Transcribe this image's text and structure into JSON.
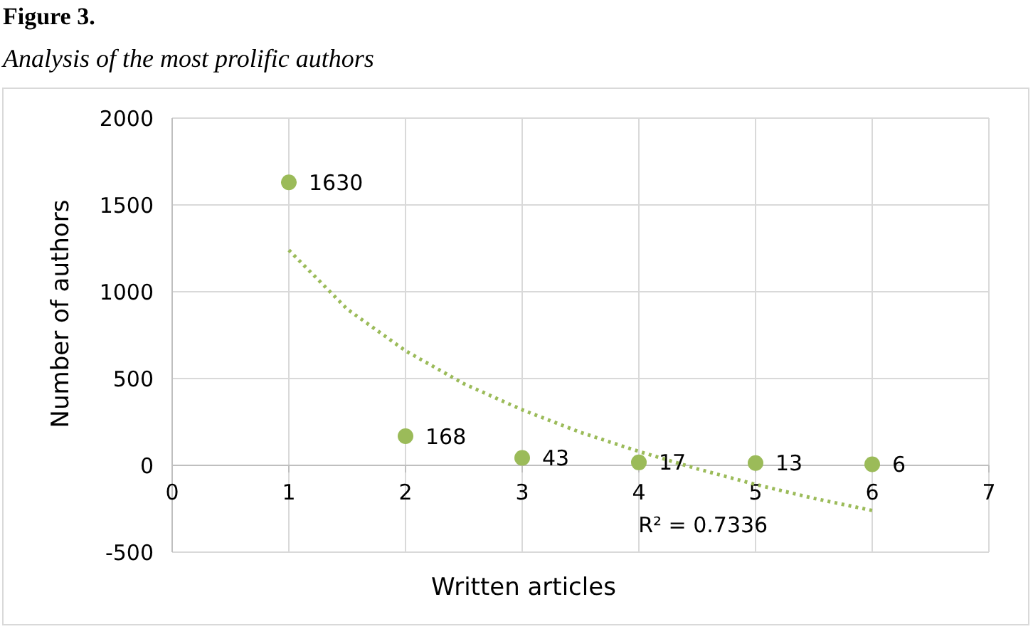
{
  "chart_data": {
    "type": "scatter",
    "title": "Figure 3.",
    "subtitle": "Analysis of the most prolific authors",
    "xlabel": "Written articles",
    "ylabel": "Number of authors",
    "xlim": [
      0,
      7
    ],
    "xticks": [
      0,
      1,
      2,
      3,
      4,
      5,
      6,
      7
    ],
    "ylim": [
      -500,
      2000
    ],
    "yticks": [
      -500,
      0,
      500,
      1000,
      1500,
      2000
    ],
    "grid": true,
    "series": [
      {
        "color": "#9bbb59",
        "marker": "circle",
        "x": [
          1,
          2,
          3,
          4,
          5,
          6
        ],
        "values": [
          1630,
          168,
          43,
          17,
          13,
          6
        ],
        "data_labels": true
      },
      {
        "type": "line",
        "color": "#9bbb59",
        "line_style": "dotted",
        "marker": "none",
        "x": [
          1,
          1.5,
          2,
          2.5,
          3,
          3.5,
          4,
          4.5,
          5,
          5.5,
          6
        ],
        "values": [
          1240,
          900,
          660,
          470,
          320,
          190,
          80,
          -20,
          -110,
          -190,
          -260
        ]
      }
    ],
    "annotations": [
      "R² = 0.7336"
    ]
  }
}
